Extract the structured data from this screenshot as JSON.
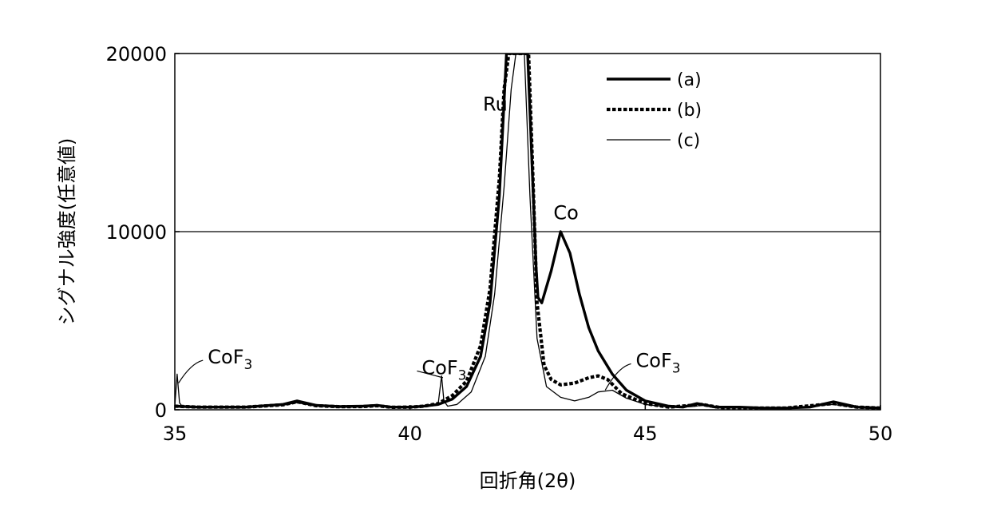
{
  "chart_data": {
    "type": "line",
    "title": "",
    "xlabel": "回折角(2θ)",
    "ylabel": "シグナル強度(任意値)",
    "xlim": [
      35,
      50
    ],
    "ylim": [
      0,
      20000
    ],
    "x_ticks": [
      35,
      40,
      45,
      50
    ],
    "y_ticks": [
      0,
      10000,
      20000
    ],
    "x_tick_labels": [
      "35",
      "40",
      "45",
      "50"
    ],
    "y_tick_labels": [
      "0",
      "10000",
      "20000"
    ],
    "grid_y": [
      10000
    ],
    "legend_position": "top-right",
    "series": [
      {
        "name": "(a)",
        "style": "solid-thick",
        "x": [
          35.0,
          35.5,
          36.5,
          37.3,
          37.6,
          38.0,
          38.5,
          39.0,
          39.3,
          39.6,
          40.0,
          40.3,
          40.6,
          40.9,
          41.2,
          41.5,
          41.7,
          41.9,
          42.05,
          42.15,
          42.5,
          42.62,
          42.68,
          42.72,
          42.8,
          43.0,
          43.2,
          43.4,
          43.6,
          43.8,
          44.0,
          44.3,
          44.6,
          45.0,
          45.5,
          45.8,
          46.1,
          46.5,
          47.0,
          47.5,
          48.0,
          48.5,
          49.0,
          49.5,
          50.0
        ],
        "y": [
          200,
          150,
          150,
          300,
          500,
          250,
          180,
          200,
          250,
          150,
          150,
          200,
          300,
          600,
          1300,
          3000,
          6000,
          12000,
          20000,
          20000,
          20000,
          12000,
          8000,
          6300,
          6000,
          7800,
          10000,
          8800,
          6500,
          4600,
          3300,
          2000,
          1100,
          500,
          200,
          150,
          350,
          150,
          150,
          100,
          100,
          150,
          450,
          150,
          100
        ]
      },
      {
        "name": "(b)",
        "style": "dashed-thick",
        "x": [
          35.0,
          35.5,
          36.5,
          37.3,
          37.6,
          38.0,
          38.5,
          39.0,
          39.3,
          39.6,
          40.0,
          40.3,
          40.6,
          40.9,
          41.2,
          41.5,
          41.7,
          41.9,
          42.0,
          42.1,
          42.52,
          42.6,
          42.7,
          42.85,
          43.0,
          43.2,
          43.5,
          43.8,
          44.0,
          44.2,
          44.5,
          45.0,
          45.5,
          46.0,
          46.2,
          46.6,
          47.0,
          48.0,
          49.0,
          49.5,
          50.0
        ],
        "y": [
          200,
          150,
          150,
          280,
          450,
          230,
          170,
          180,
          230,
          140,
          150,
          200,
          350,
          800,
          1600,
          3600,
          6800,
          13000,
          18000,
          20000,
          20000,
          14000,
          6000,
          2500,
          1700,
          1400,
          1500,
          1800,
          1900,
          1700,
          900,
          350,
          150,
          250,
          300,
          120,
          100,
          100,
          350,
          150,
          100
        ]
      },
      {
        "name": "(c)",
        "style": "solid-thin",
        "x": [
          35.0,
          35.05,
          35.1,
          35.15,
          35.4,
          36.5,
          37.3,
          37.6,
          38.0,
          38.5,
          39.0,
          39.3,
          39.6,
          40.0,
          40.3,
          40.6,
          40.67,
          40.72,
          40.8,
          41.0,
          41.3,
          41.6,
          41.8,
          42.0,
          42.15,
          42.25,
          42.43,
          42.55,
          42.7,
          42.9,
          43.2,
          43.5,
          43.8,
          44.0,
          44.3,
          44.6,
          45.0,
          45.5,
          46.0,
          46.2,
          46.6,
          47.0,
          48.0,
          49.0,
          49.5,
          50.0
        ],
        "y": [
          200,
          2000,
          400,
          200,
          150,
          150,
          250,
          400,
          200,
          150,
          160,
          200,
          130,
          130,
          180,
          350,
          1900,
          500,
          200,
          300,
          1000,
          3000,
          6500,
          12500,
          18000,
          20000,
          20000,
          12000,
          4000,
          1300,
          700,
          500,
          700,
          1000,
          1100,
          650,
          300,
          150,
          180,
          250,
          100,
          100,
          100,
          300,
          120,
          100
        ]
      }
    ],
    "annotations": [
      {
        "text": "Ru",
        "x": 41.55,
        "y": 16800
      },
      {
        "text": "Co",
        "x": 43.05,
        "y": 10700
      },
      {
        "text": "CoF",
        "sub": "3",
        "x": 35.7,
        "y": 2600,
        "pointer_x": 35.08,
        "pointer_y": 1500
      },
      {
        "text": "CoF",
        "sub": "3",
        "x": 40.25,
        "y": 2000,
        "pointer_x": 40.7,
        "pointer_y": 1800
      },
      {
        "text": "CoF",
        "sub": "3",
        "x": 44.8,
        "y": 2400,
        "pointer_x": 44.15,
        "pointer_y": 1100
      }
    ]
  }
}
